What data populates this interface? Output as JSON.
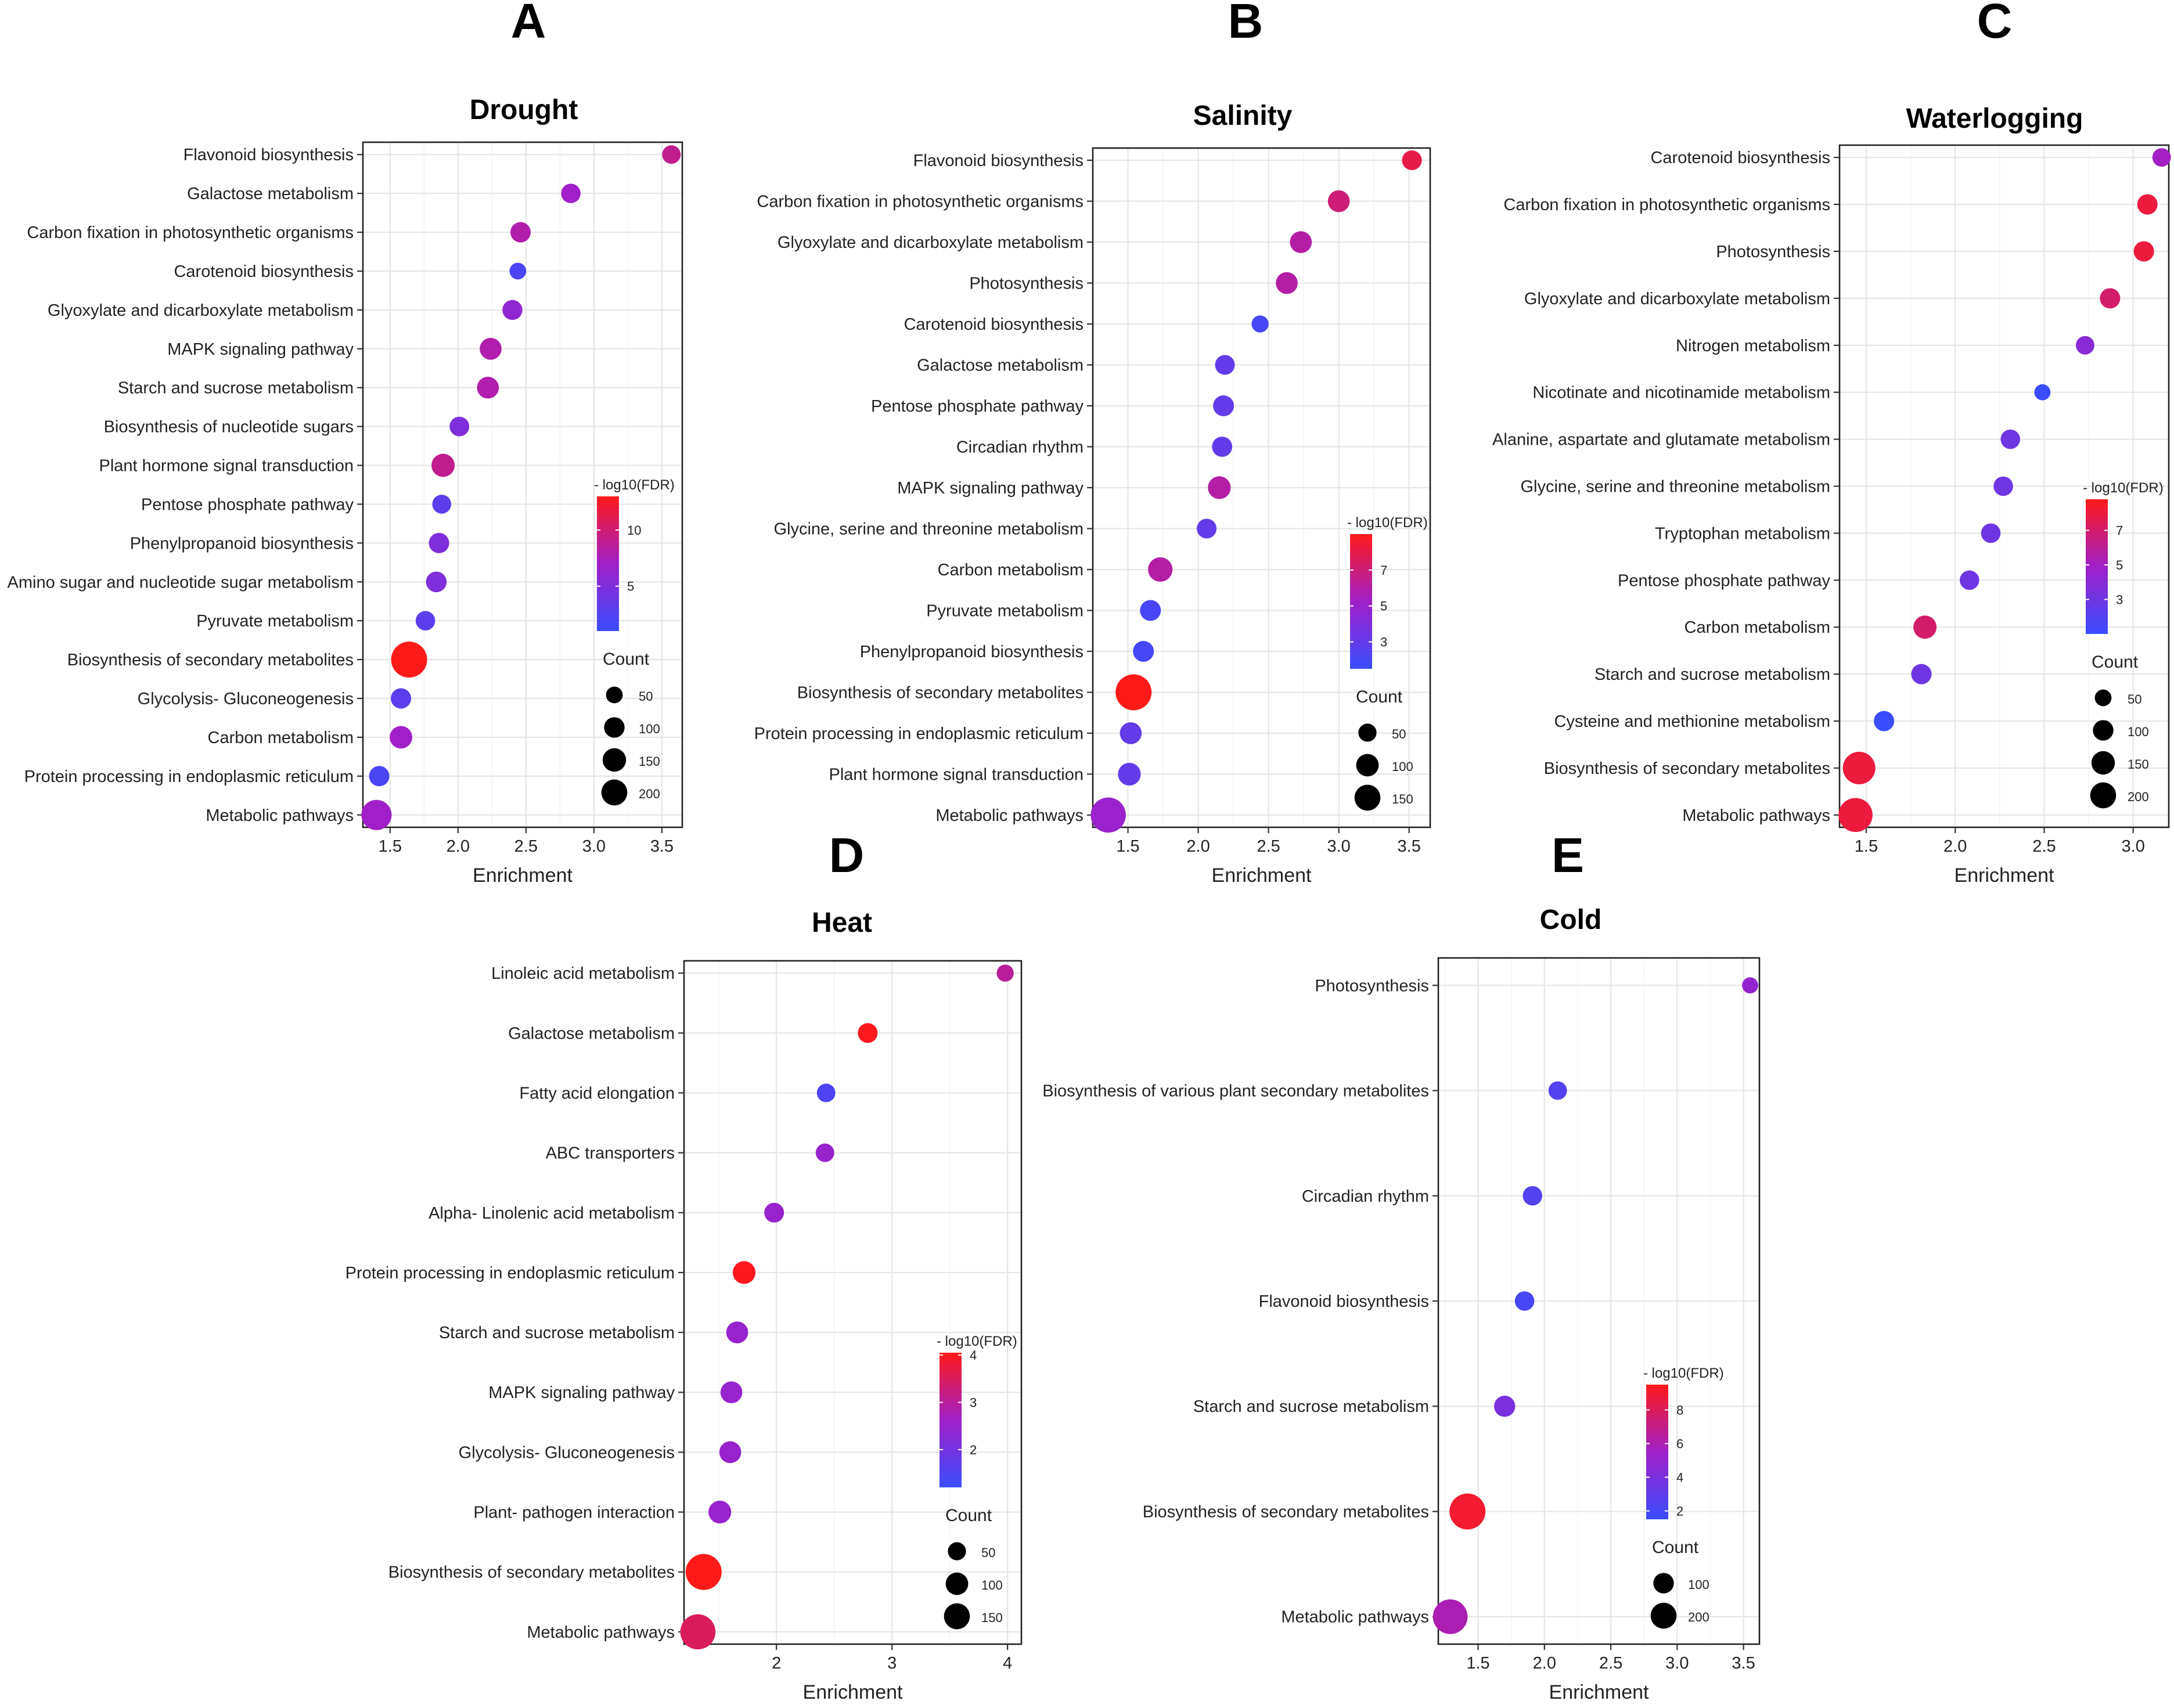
{
  "chart_data": [
    {
      "panel": "A",
      "title": "Drought",
      "type": "scatter",
      "xlabel": "Enrichment",
      "xlim": [
        1.3,
        3.65
      ],
      "xticks": [
        1.5,
        2.0,
        2.5,
        3.0,
        3.5
      ],
      "xtick_labels": [
        "1.5",
        "2.0",
        "2.5",
        "3.0",
        "3.5"
      ],
      "categories": [
        "Flavonoid biosynthesis",
        "Galactose metabolism",
        "Carbon fixation in photosynthetic organisms",
        "Carotenoid biosynthesis",
        "Glyoxylate and dicarboxylate metabolism",
        "MAPK signaling pathway",
        "Starch and sucrose metabolism",
        "Biosynthesis of nucleotide sugars",
        "Plant hormone signal transduction",
        "Pentose phosphate pathway",
        "Phenylpropanoid biosynthesis",
        "Amino sugar and nucleotide sugar metabolism",
        "Pyruvate metabolism",
        "Biosynthesis of secondary metabolites",
        "Glycolysis- Gluconeogenesis",
        "Carbon metabolism",
        "Protein processing in endoplasmic reticulum",
        "Metabolic pathways"
      ],
      "enrichment": [
        3.57,
        2.83,
        2.46,
        2.44,
        2.4,
        2.24,
        2.22,
        2.01,
        1.89,
        1.88,
        1.86,
        1.84,
        1.76,
        1.64,
        1.58,
        1.58,
        1.42,
        1.4
      ],
      "count": [
        20,
        25,
        30,
        12,
        28,
        40,
        40,
        26,
        50,
        22,
        30,
        32,
        25,
        200,
        30,
        45,
        30,
        120
      ],
      "neg_log10_fdr": [
        9,
        7,
        8,
        2,
        6,
        8,
        8,
        5,
        9,
        3,
        5,
        5,
        3,
        13,
        3,
        7,
        2,
        7
      ],
      "legend": {
        "color_title": "- log10(FDR)",
        "color_range": [
          1,
          13
        ],
        "color_ticks": [
          5,
          10
        ],
        "size_title": "Count",
        "size_values": [
          50,
          100,
          150,
          200
        ],
        "size_labels": [
          "50",
          "100",
          "150",
          "200"
        ],
        "size_max": 200
      }
    },
    {
      "panel": "B",
      "title": "Salinity",
      "type": "scatter",
      "xlabel": "Enrichment",
      "xlim": [
        1.25,
        3.65
      ],
      "xticks": [
        1.5,
        2.0,
        2.5,
        3.0,
        3.5
      ],
      "xtick_labels": [
        "1.5",
        "2.0",
        "2.5",
        "3.0",
        "3.5"
      ],
      "categories": [
        "Flavonoid biosynthesis",
        "Carbon fixation in photosynthetic organisms",
        "Glyoxylate and dicarboxylate metabolism",
        "Photosynthesis",
        "Carotenoid biosynthesis",
        "Galactose metabolism",
        "Pentose phosphate pathway",
        "Circadian rhythm",
        "MAPK signaling pathway",
        "Glycine, serine and threonine metabolism",
        "Carbon metabolism",
        "Pyruvate metabolism",
        "Phenylpropanoid biosynthesis",
        "Biosynthesis of secondary metabolites",
        "Protein processing in endoplasmic reticulum",
        "Plant hormone signal transduction",
        "Metabolic pathways"
      ],
      "enrichment": [
        3.52,
        3.0,
        2.73,
        2.63,
        2.44,
        2.19,
        2.18,
        2.17,
        2.15,
        2.06,
        1.73,
        1.66,
        1.61,
        1.54,
        1.52,
        1.51,
        1.36
      ],
      "count": [
        20,
        30,
        30,
        30,
        10,
        20,
        25,
        22,
        35,
        20,
        45,
        25,
        25,
        150,
        30,
        35,
        140
      ],
      "neg_log10_fdr": [
        8,
        7,
        6,
        6,
        2,
        3,
        3,
        3,
        6,
        3,
        6,
        2,
        2,
        9,
        3,
        3,
        5
      ],
      "legend": {
        "color_title": "- log10(FDR)",
        "color_range": [
          1.5,
          9
        ],
        "color_ticks": [
          3,
          5,
          7
        ],
        "size_title": "Count",
        "size_values": [
          50,
          100,
          150
        ],
        "size_labels": [
          "50",
          "100",
          "150"
        ],
        "size_max": 150
      }
    },
    {
      "panel": "C",
      "title": "Waterlogging",
      "type": "scatter",
      "xlabel": "Enrichment",
      "xlim": [
        1.35,
        3.2
      ],
      "xticks": [
        1.5,
        2.0,
        2.5,
        3.0
      ],
      "xtick_labels": [
        "1.5",
        "2.0",
        "2.5",
        "3.0"
      ],
      "categories": [
        "Carotenoid biosynthesis",
        "Carbon fixation in photosynthetic organisms",
        "Photosynthesis",
        "Glyoxylate and dicarboxylate metabolism",
        "Nitrogen metabolism",
        "Nicotinate and nicotinamide metabolism",
        "Alanine, aspartate and glutamate metabolism",
        "Glycine, serine and threonine metabolism",
        "Tryptophan metabolism",
        "Pentose phosphate pathway",
        "Carbon metabolism",
        "Starch and sucrose metabolism",
        "Cysteine and methionine metabolism",
        "Biosynthesis of secondary metabolites",
        "Metabolic pathways"
      ],
      "enrichment": [
        3.16,
        3.08,
        3.06,
        2.87,
        2.73,
        2.49,
        2.31,
        2.27,
        2.2,
        2.08,
        1.83,
        1.81,
        1.6,
        1.46,
        1.44
      ],
      "count": [
        20,
        30,
        30,
        30,
        20,
        10,
        25,
        25,
        25,
        25,
        50,
        30,
        30,
        150,
        170
      ],
      "neg_log10_fdr": [
        5,
        8,
        8,
        7,
        4,
        1,
        3,
        3,
        3,
        3,
        7,
        3,
        1,
        8,
        8
      ],
      "legend": {
        "color_title": "- log10(FDR)",
        "color_range": [
          1,
          8.8
        ],
        "color_ticks": [
          3,
          5,
          7
        ],
        "size_title": "Count",
        "size_values": [
          50,
          100,
          150,
          200
        ],
        "size_labels": [
          "50",
          "100",
          "150",
          "200"
        ],
        "size_max": 200
      }
    },
    {
      "panel": "D",
      "title": "Heat",
      "type": "scatter",
      "xlabel": "Enrichment",
      "xlim": [
        1.2,
        4.12
      ],
      "xticks": [
        2,
        3,
        4
      ],
      "xtick_labels": [
        "2",
        "3",
        "4"
      ],
      "categories": [
        "Linoleic acid metabolism",
        "Galactose metabolism",
        "Fatty acid elongation",
        "ABC transporters",
        "Alpha- Linolenic acid metabolism",
        "Protein processing in endoplasmic reticulum",
        "Starch and sucrose metabolism",
        "MAPK signaling pathway",
        "Glycolysis- Gluconeogenesis",
        "Plant- pathogen interaction",
        "Biosynthesis of secondary metabolites",
        "Metabolic pathways"
      ],
      "enrichment": [
        3.98,
        2.79,
        2.43,
        2.42,
        1.98,
        1.72,
        1.66,
        1.61,
        1.6,
        1.51,
        1.37,
        1.32
      ],
      "count": [
        10,
        20,
        15,
        15,
        20,
        35,
        30,
        30,
        30,
        35,
        150,
        140
      ],
      "neg_log10_fdr": [
        3,
        4,
        1.5,
        2.5,
        2.5,
        4,
        2.5,
        2.5,
        2.5,
        2.5,
        4.2,
        3.5
      ],
      "legend": {
        "color_title": "- log10(FDR)",
        "color_range": [
          1.2,
          4.05
        ],
        "color_ticks": [
          2,
          3,
          4
        ],
        "size_title": "Count",
        "size_values": [
          50,
          100,
          150
        ],
        "size_labels": [
          "50",
          "100",
          "150"
        ],
        "size_max": 150
      }
    },
    {
      "panel": "E",
      "title": "Cold",
      "type": "scatter",
      "xlabel": "Enrichment",
      "xlim": [
        1.2,
        3.62
      ],
      "xticks": [
        1.5,
        2.0,
        2.5,
        3.0,
        3.5
      ],
      "xtick_labels": [
        "1.5",
        "2.0",
        "2.5",
        "3.0",
        "3.5"
      ],
      "categories": [
        "Photosynthesis",
        "Biosynthesis of various plant secondary metabolites",
        "Circadian rhythm",
        "Flavonoid biosynthesis",
        "Starch and sucrose metabolism",
        "Biosynthesis of secondary metabolites",
        "Metabolic pathways"
      ],
      "enrichment": [
        3.55,
        2.1,
        1.91,
        1.85,
        1.7,
        1.42,
        1.29
      ],
      "count": [
        10,
        20,
        25,
        25,
        35,
        200,
        180
      ],
      "neg_log10_fdr": [
        5,
        2.5,
        2.5,
        2,
        4,
        9,
        6
      ],
      "legend": {
        "color_title": "- log10(FDR)",
        "color_range": [
          1.5,
          9.5
        ],
        "color_ticks": [
          2,
          4,
          6,
          8
        ],
        "size_title": "Count",
        "size_values": [
          100,
          200
        ],
        "size_labels": [
          "100",
          "200"
        ],
        "size_max": 200
      }
    }
  ]
}
